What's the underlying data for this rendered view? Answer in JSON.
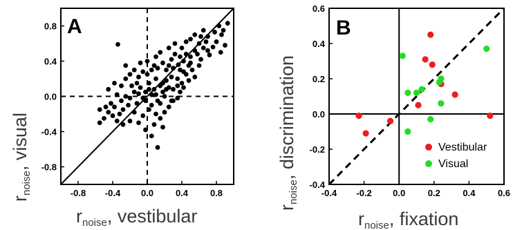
{
  "chart_data": [
    {
      "type": "scatter",
      "panel": "A",
      "xlabel": {
        "main": "r",
        "sub": "noise",
        "rest": ", vestibular"
      },
      "ylabel": {
        "main": "r",
        "sub": "noise",
        "rest": ", visual"
      },
      "xlim": [
        -1.0,
        1.0
      ],
      "ylim": [
        -1.0,
        1.0
      ],
      "xticks": [
        -0.8,
        -0.4,
        0.0,
        0.4,
        0.8
      ],
      "xtick_labels": [
        "-0.8",
        "-0.4",
        "0.0",
        "0.4",
        "0.8"
      ],
      "yticks": [
        -0.8,
        -0.4,
        0.0,
        0.4,
        0.8
      ],
      "ytick_labels": [
        "-0.8",
        "-0.4",
        "0.0",
        "0.4",
        "0.8"
      ],
      "reference_lines": [
        "unity diagonal (solid)",
        "x = 0 (dashed)",
        "y = 0 (dashed)"
      ],
      "marker_color": "#000000",
      "series": [
        {
          "points": [
            [
              0.93,
              0.83
            ],
            [
              0.83,
              0.8
            ],
            [
              0.78,
              0.73
            ],
            [
              0.86,
              0.7
            ],
            [
              0.9,
              0.58
            ],
            [
              0.85,
              0.5
            ],
            [
              0.76,
              0.56
            ],
            [
              0.68,
              0.62
            ],
            [
              0.65,
              0.55
            ],
            [
              0.72,
              0.47
            ],
            [
              0.6,
              0.6
            ],
            [
              0.55,
              0.52
            ],
            [
              0.5,
              0.45
            ],
            [
              0.62,
              0.42
            ],
            [
              0.48,
              0.35
            ],
            [
              0.42,
              0.4
            ],
            [
              0.38,
              0.3
            ],
            [
              0.45,
              0.25
            ],
            [
              0.52,
              0.3
            ],
            [
              0.3,
              0.32
            ],
            [
              0.35,
              0.2
            ],
            [
              0.4,
              0.15
            ],
            [
              0.28,
              0.22
            ],
            [
              0.22,
              0.18
            ],
            [
              0.25,
              0.1
            ],
            [
              0.3,
              0.08
            ],
            [
              0.18,
              0.05
            ],
            [
              0.2,
              0.0
            ],
            [
              0.15,
              0.12
            ],
            [
              0.1,
              0.2
            ],
            [
              0.08,
              0.08
            ],
            [
              0.12,
              -0.05
            ],
            [
              0.05,
              0.02
            ],
            [
              0.02,
              0.15
            ],
            [
              -0.02,
              0.05
            ],
            [
              -0.05,
              -0.02
            ],
            [
              -0.08,
              0.1
            ],
            [
              -0.1,
              0.03
            ],
            [
              -0.12,
              -0.08
            ],
            [
              -0.15,
              0.05
            ],
            [
              -0.18,
              0.12
            ],
            [
              -0.2,
              -0.02
            ],
            [
              -0.22,
              -0.1
            ],
            [
              -0.25,
              0.0
            ],
            [
              -0.28,
              -0.15
            ],
            [
              -0.3,
              -0.05
            ],
            [
              -0.32,
              -0.2
            ],
            [
              -0.35,
              0.02
            ],
            [
              -0.38,
              -0.12
            ],
            [
              -0.4,
              -0.22
            ],
            [
              -0.42,
              -0.08
            ],
            [
              -0.45,
              -0.18
            ],
            [
              -0.5,
              -0.25
            ],
            [
              -0.55,
              -0.3
            ],
            [
              -0.48,
              -0.12
            ],
            [
              -0.45,
              0.08
            ],
            [
              -0.38,
              0.15
            ],
            [
              -0.3,
              0.12
            ],
            [
              -0.25,
              0.2
            ],
            [
              -0.2,
              0.25
            ],
            [
              -0.15,
              0.3
            ],
            [
              -0.1,
              0.22
            ],
            [
              -0.05,
              0.28
            ],
            [
              0.0,
              0.25
            ],
            [
              0.05,
              0.3
            ],
            [
              0.08,
              0.35
            ],
            [
              0.12,
              0.32
            ],
            [
              0.18,
              0.38
            ],
            [
              0.22,
              0.3
            ],
            [
              0.28,
              0.42
            ],
            [
              0.32,
              0.48
            ],
            [
              0.36,
              0.36
            ],
            [
              0.4,
              0.55
            ],
            [
              0.45,
              0.62
            ],
            [
              0.5,
              0.65
            ],
            [
              0.55,
              0.7
            ],
            [
              0.58,
              0.48
            ],
            [
              0.62,
              0.68
            ],
            [
              0.65,
              0.75
            ],
            [
              0.7,
              0.68
            ],
            [
              -0.34,
              0.59
            ],
            [
              0.12,
              -0.58
            ],
            [
              0.05,
              -0.45
            ],
            [
              -0.02,
              -0.38
            ],
            [
              0.08,
              -0.32
            ],
            [
              0.15,
              -0.25
            ],
            [
              0.2,
              -0.18
            ],
            [
              0.25,
              -0.12
            ],
            [
              0.3,
              -0.05
            ],
            [
              0.35,
              -0.02
            ],
            [
              0.38,
              0.05
            ],
            [
              0.42,
              0.1
            ],
            [
              0.48,
              0.18
            ],
            [
              0.55,
              0.22
            ],
            [
              0.6,
              0.35
            ],
            [
              0.18,
              -0.35
            ],
            [
              0.1,
              -0.2
            ],
            [
              0.02,
              -0.15
            ],
            [
              -0.05,
              -0.22
            ],
            [
              -0.1,
              -0.3
            ],
            [
              -0.15,
              -0.18
            ],
            [
              -0.2,
              -0.28
            ],
            [
              -0.28,
              -0.32
            ],
            [
              0.1,
              0.45
            ],
            [
              0.15,
              0.5
            ],
            [
              0.0,
              0.4
            ],
            [
              -0.08,
              0.38
            ],
            [
              0.25,
              0.55
            ],
            [
              0.32,
              0.6
            ],
            [
              0.22,
              0.08
            ],
            [
              0.28,
              -0.05
            ],
            [
              0.15,
              -0.08
            ],
            [
              0.05,
              -0.1
            ],
            [
              -0.02,
              -0.05
            ],
            [
              0.02,
              0.08
            ],
            [
              0.1,
              0.02
            ],
            [
              0.18,
              0.15
            ],
            [
              0.35,
              0.12
            ],
            [
              0.42,
              0.28
            ],
            [
              0.5,
              0.38
            ],
            [
              -0.55,
              -0.15
            ],
            [
              -0.35,
              -0.28
            ],
            [
              0.7,
              0.52
            ],
            [
              0.8,
              0.62
            ],
            [
              0.88,
              0.75
            ],
            [
              0.25,
              0.35
            ],
            [
              0.38,
              0.45
            ],
            [
              0.45,
              0.48
            ],
            [
              -0.12,
              0.15
            ],
            [
              -0.25,
              0.35
            ]
          ]
        }
      ]
    },
    {
      "type": "scatter",
      "panel": "B",
      "xlabel": {
        "main": "r",
        "sub": "noise",
        "rest": ", fixation"
      },
      "ylabel": {
        "main": "r",
        "sub": "noise",
        "rest": ", discrimination"
      },
      "xlim": [
        -0.4,
        0.6
      ],
      "ylim": [
        -0.4,
        0.6
      ],
      "xticks": [
        -0.4,
        -0.2,
        0.0,
        0.2,
        0.4,
        0.6
      ],
      "xtick_labels": [
        "-0.4",
        "-0.2",
        "0.0",
        "0.2",
        "0.4",
        "0.6"
      ],
      "yticks": [
        -0.4,
        -0.2,
        0.0,
        0.2,
        0.4,
        0.6
      ],
      "ytick_labels": [
        "-0.4",
        "-0.2",
        "0.0",
        "0.2",
        "0.4",
        "0.6"
      ],
      "reference_lines": [
        "unity diagonal (dashed)",
        "x = 0 (solid)",
        "y = 0 (solid)"
      ],
      "legend_position": "bottom-right",
      "series": [
        {
          "name": "Vestibular",
          "color": "#ee1c1c",
          "points": [
            [
              0.18,
              0.45
            ],
            [
              0.15,
              0.31
            ],
            [
              0.19,
              0.28
            ],
            [
              0.24,
              0.17
            ],
            [
              0.32,
              0.11
            ],
            [
              0.11,
              0.05
            ],
            [
              -0.23,
              -0.01
            ],
            [
              -0.19,
              -0.11
            ],
            [
              -0.05,
              -0.04
            ],
            [
              0.52,
              -0.01
            ]
          ]
        },
        {
          "name": "Visual",
          "color": "#22dd22",
          "points": [
            [
              0.02,
              0.33
            ],
            [
              0.5,
              0.37
            ],
            [
              0.24,
              0.2
            ],
            [
              0.23,
              0.18
            ],
            [
              0.13,
              0.14
            ],
            [
              0.05,
              0.12
            ],
            [
              0.1,
              0.12
            ],
            [
              0.24,
              0.06
            ],
            [
              0.18,
              -0.03
            ],
            [
              0.05,
              -0.1
            ]
          ]
        }
      ]
    }
  ]
}
